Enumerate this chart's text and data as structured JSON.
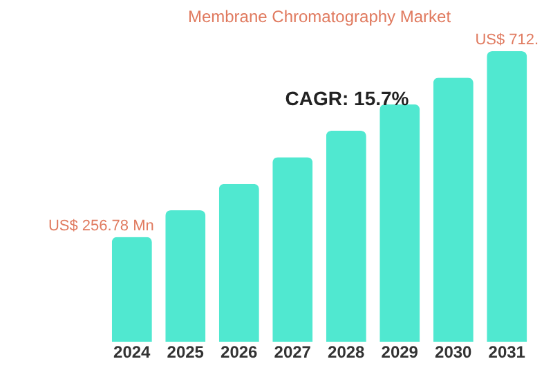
{
  "chart_data": {
    "type": "bar",
    "title": "Membrane Chromatography Market",
    "categories": [
      "2024",
      "2025",
      "2026",
      "2027",
      "2028",
      "2029",
      "2030",
      "2031"
    ],
    "values": [
      256.78,
      322,
      387,
      452,
      517,
      582,
      647,
      712
    ],
    "color": "#50e8d0",
    "value_labels": [
      "US$ 256.78 Mn",
      null,
      null,
      null,
      null,
      null,
      null,
      "US$ 712."
    ],
    "annotations": [
      "CAGR: 15.7%"
    ],
    "grid": false
  }
}
